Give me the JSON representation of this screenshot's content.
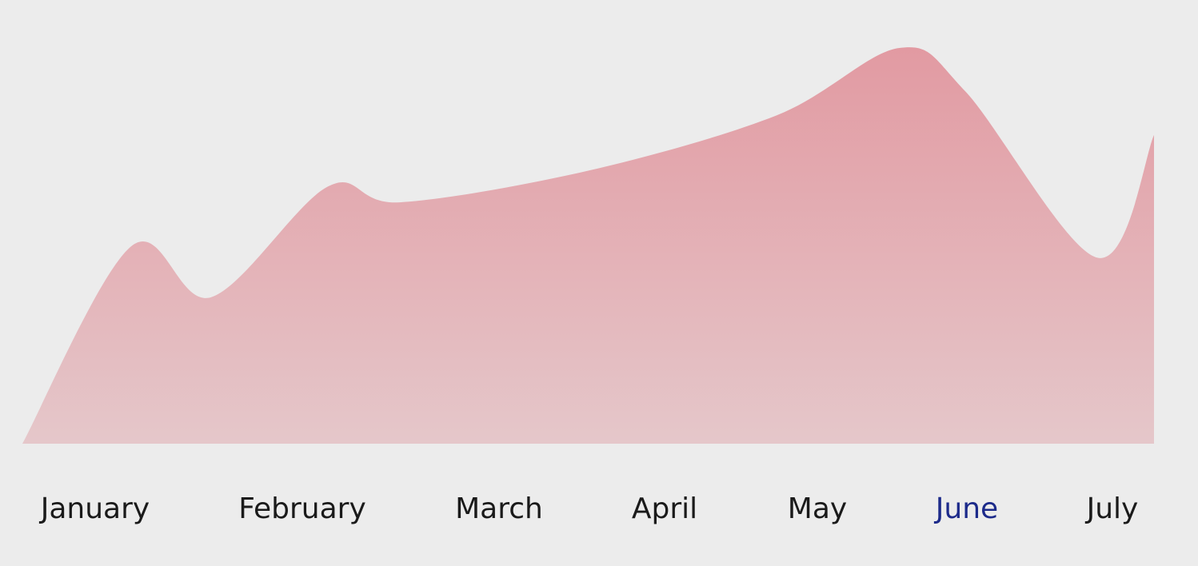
{
  "chart_data": {
    "type": "area",
    "title": "",
    "xlabel": "",
    "ylabel": "",
    "categories": [
      "January",
      "February",
      "March",
      "April",
      "May",
      "June",
      "July"
    ],
    "active_category": "June",
    "series": [
      {
        "values": [
          {
            "x": 0.0,
            "y": 0
          },
          {
            "x": 0.58,
            "y": 50
          },
          {
            "x": 1.0,
            "y": 37
          },
          {
            "x": 1.62,
            "y": 65
          },
          {
            "x": 2.0,
            "y": 61
          },
          {
            "x": 3.0,
            "y": 69
          },
          {
            "x": 4.0,
            "y": 83
          },
          {
            "x": 4.65,
            "y": 100
          },
          {
            "x": 5.0,
            "y": 89
          },
          {
            "x": 5.7,
            "y": 47
          },
          {
            "x": 6.0,
            "y": 78
          }
        ]
      }
    ],
    "ylim": [
      0,
      100
    ],
    "grid": false,
    "legend": "none",
    "colors": {
      "background": "#ececec",
      "area_top": "#e29aa2",
      "area_bottom": "#e5c7ca",
      "label": "#1a1a1a",
      "label_active": "#1c2a8a"
    }
  }
}
